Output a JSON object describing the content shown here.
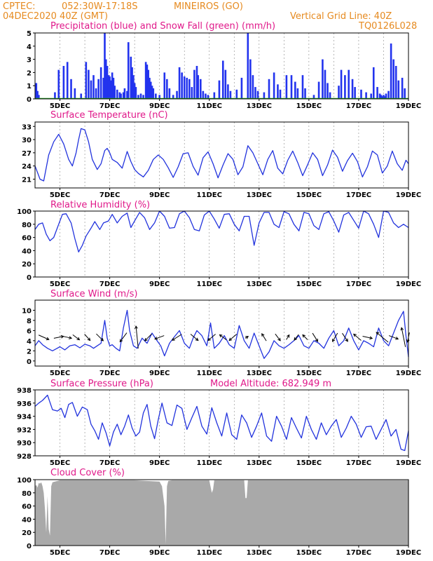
{
  "header": {
    "source": "CPTEC:",
    "coords": "052:30W-17:18S",
    "location": "MINEIROS (GO)",
    "date": "04DEC2020 40Z (GMT)",
    "grid_note": "Vertical Grid Line: 40Z",
    "code": "TQ0126L028"
  },
  "colors": {
    "header": "#e68a1f",
    "title": "#e0198a",
    "line": "#2233dd",
    "precip": "#2233ee",
    "snow": "#22aa22",
    "cloud": "#a9a9a9"
  },
  "x_axis": {
    "start_day": 4,
    "end_day": 19,
    "tick_labels": [
      "5DEC",
      "7DEC",
      "9DEC",
      "11DEC",
      "13DEC",
      "15DEC",
      "17DEC",
      "19DEC"
    ],
    "tick_days": [
      5,
      7,
      9,
      11,
      13,
      15,
      17,
      19
    ]
  },
  "chart_data": [
    {
      "type": "bar",
      "title": "Precipitation (blue) and Snow Fall (green) (mm/h)",
      "ylim": [
        0,
        5
      ],
      "yticks": [
        "0",
        "1",
        "2",
        "3",
        "4",
        "5"
      ],
      "grid": true,
      "day": [
        4.05,
        4.1,
        4.15,
        4.8,
        4.95,
        5.15,
        5.3,
        5.45,
        5.6,
        5.85,
        6.05,
        6.15,
        6.25,
        6.35,
        6.45,
        6.55,
        6.65,
        6.75,
        6.8,
        6.85,
        6.9,
        6.95,
        7.0,
        7.05,
        7.1,
        7.15,
        7.2,
        7.3,
        7.4,
        7.45,
        7.55,
        7.6,
        7.7,
        7.75,
        7.85,
        7.9,
        7.95,
        8.0,
        8.05,
        8.15,
        8.25,
        8.35,
        8.45,
        8.5,
        8.55,
        8.6,
        8.65,
        8.7,
        8.75,
        8.85,
        9.0,
        9.2,
        9.3,
        9.4,
        9.55,
        9.7,
        9.8,
        9.9,
        10.0,
        10.1,
        10.2,
        10.3,
        10.4,
        10.5,
        10.55,
        10.65,
        10.75,
        10.85,
        10.95,
        11.2,
        11.4,
        11.55,
        11.65,
        11.75,
        11.85,
        12.1,
        12.3,
        12.55,
        12.65,
        12.75,
        12.85,
        12.95,
        13.2,
        13.4,
        13.6,
        13.75,
        13.85,
        14.1,
        14.3,
        14.45,
        14.55,
        14.75,
        14.85,
        15.2,
        15.4,
        15.55,
        15.65,
        15.75,
        15.85,
        16.2,
        16.3,
        16.45,
        16.6,
        16.75,
        16.85,
        17.1,
        17.3,
        17.5,
        17.6,
        17.75,
        17.85,
        17.9,
        17.95,
        18.0,
        18.05,
        18.1,
        18.2,
        18.3,
        18.4,
        18.5,
        18.6,
        18.75,
        18.85
      ],
      "values": [
        1.2,
        0.6,
        0.3,
        0.5,
        2.2,
        2.5,
        2.8,
        1.5,
        0.8,
        0.4,
        2.8,
        2.2,
        1.4,
        1.8,
        0.8,
        1.5,
        2.4,
        1.6,
        5.0,
        3.0,
        2.5,
        1.8,
        1.7,
        1.4,
        2.0,
        1.6,
        1.0,
        0.7,
        0.5,
        0.4,
        0.5,
        0.8,
        0.6,
        4.3,
        3.2,
        2.4,
        1.8,
        1.2,
        0.9,
        0.3,
        0.4,
        0.3,
        2.8,
        2.6,
        2.2,
        1.6,
        1.3,
        1.0,
        0.8,
        0.4,
        0.3,
        2.0,
        1.5,
        0.8,
        0.3,
        0.6,
        2.4,
        2.0,
        1.7,
        1.6,
        1.5,
        0.9,
        2.2,
        2.5,
        1.8,
        1.5,
        0.6,
        0.4,
        0.3,
        0.5,
        1.4,
        2.9,
        2.2,
        1.1,
        0.6,
        0.7,
        1.6,
        5.0,
        3.0,
        1.8,
        0.9,
        0.6,
        0.5,
        1.5,
        2.0,
        1.1,
        0.7,
        1.8,
        1.8,
        1.3,
        0.8,
        1.8,
        0.8,
        0.3,
        1.3,
        3.0,
        2.2,
        1.2,
        0.5,
        1.0,
        2.2,
        1.8,
        2.2,
        1.5,
        0.9,
        0.7,
        0.5,
        0.4,
        2.4,
        0.9,
        0.4,
        0.3,
        0.2,
        0.3,
        0.2,
        0.4,
        0.6,
        4.2,
        3.0,
        2.5,
        1.4,
        1.6,
        0.8
      ]
    },
    {
      "type": "line",
      "title": "Surface Temperature (nC)",
      "ylim": [
        19,
        34
      ],
      "yticks": [
        "21",
        "24",
        "27",
        "30",
        "33"
      ],
      "ytick_values": [
        21,
        24,
        27,
        30,
        33
      ],
      "grid": true,
      "day": [
        4.0,
        4.1,
        4.2,
        4.35,
        4.55,
        4.75,
        4.95,
        5.15,
        5.35,
        5.5,
        5.65,
        5.75,
        5.85,
        6.0,
        6.15,
        6.3,
        6.5,
        6.65,
        6.8,
        6.9,
        7.0,
        7.1,
        7.3,
        7.5,
        7.7,
        7.85,
        8.0,
        8.15,
        8.35,
        8.55,
        8.75,
        8.95,
        9.15,
        9.35,
        9.55,
        9.75,
        9.95,
        10.15,
        10.35,
        10.55,
        10.75,
        10.95,
        11.15,
        11.35,
        11.55,
        11.75,
        11.95,
        12.15,
        12.35,
        12.55,
        12.75,
        12.95,
        13.15,
        13.35,
        13.55,
        13.75,
        13.95,
        14.15,
        14.35,
        14.55,
        14.75,
        14.95,
        15.15,
        15.35,
        15.55,
        15.75,
        15.95,
        16.15,
        16.35,
        16.55,
        16.75,
        16.95,
        17.15,
        17.35,
        17.55,
        17.75,
        17.95,
        18.15,
        18.35,
        18.55,
        18.75,
        18.9,
        19.0
      ],
      "values": [
        24.0,
        22.5,
        21.0,
        20.6,
        26.5,
        29.5,
        31.2,
        29.0,
        25.5,
        24.0,
        27.0,
        30.0,
        32.5,
        32.2,
        29.5,
        25.5,
        23.2,
        24.5,
        27.5,
        28.0,
        27.0,
        25.5,
        24.8,
        23.5,
        27.3,
        25.0,
        23.2,
        22.3,
        21.5,
        23.0,
        25.5,
        26.5,
        25.5,
        23.6,
        21.4,
        23.8,
        26.8,
        27.0,
        23.9,
        21.9,
        25.9,
        27.2,
        24.5,
        21.3,
        24.2,
        26.8,
        25.5,
        22.0,
        23.8,
        28.6,
        27.0,
        24.5,
        22.0,
        25.5,
        27.5,
        23.5,
        22.2,
        25.3,
        27.4,
        24.8,
        21.8,
        24.3,
        27.0,
        25.5,
        21.8,
        24.2,
        27.6,
        26.0,
        22.8,
        25.2,
        26.9,
        25.0,
        21.5,
        23.8,
        27.4,
        26.5,
        22.4,
        24.0,
        27.4,
        24.5,
        23.0,
        25.3,
        24.5
      ]
    },
    {
      "type": "line",
      "title": "Relative Humidity (%)",
      "ylim": [
        0,
        100
      ],
      "yticks": [
        "0",
        "20",
        "40",
        "60",
        "80",
        "100"
      ],
      "ytick_values": [
        0,
        20,
        40,
        60,
        80,
        100
      ],
      "grid": true,
      "day": [
        4.0,
        4.15,
        4.3,
        4.45,
        4.6,
        4.75,
        4.9,
        5.1,
        5.25,
        5.45,
        5.6,
        5.75,
        5.9,
        6.05,
        6.25,
        6.4,
        6.6,
        6.75,
        6.95,
        7.1,
        7.3,
        7.5,
        7.7,
        7.85,
        8.0,
        8.2,
        8.4,
        8.6,
        8.8,
        9.0,
        9.2,
        9.4,
        9.6,
        9.8,
        10.0,
        10.2,
        10.4,
        10.6,
        10.8,
        11.0,
        11.2,
        11.4,
        11.6,
        11.8,
        12.0,
        12.2,
        12.4,
        12.6,
        12.8,
        13.0,
        13.2,
        13.4,
        13.6,
        13.8,
        14.0,
        14.2,
        14.4,
        14.6,
        14.8,
        15.0,
        15.2,
        15.4,
        15.6,
        15.8,
        16.0,
        16.2,
        16.4,
        16.6,
        16.8,
        17.0,
        17.2,
        17.4,
        17.6,
        17.8,
        18.0,
        18.2,
        18.4,
        18.6,
        18.8,
        19.0
      ],
      "values": [
        72,
        80,
        82,
        65,
        55,
        60,
        75,
        95,
        96,
        82,
        58,
        38,
        48,
        62,
        74,
        84,
        72,
        82,
        85,
        95,
        82,
        92,
        97,
        75,
        85,
        98,
        90,
        72,
        82,
        100,
        92,
        74,
        75,
        96,
        100,
        90,
        72,
        70,
        94,
        100,
        88,
        74,
        95,
        96,
        80,
        70,
        92,
        92,
        48,
        82,
        98,
        98,
        80,
        75,
        99,
        96,
        80,
        70,
        98,
        96,
        78,
        72,
        96,
        99,
        85,
        68,
        94,
        98,
        86,
        74,
        100,
        96,
        80,
        60,
        100,
        98,
        82,
        75,
        80,
        75
      ]
    },
    {
      "type": "line",
      "title": "Surface Wind (m/s)",
      "ylim": [
        -1,
        12
      ],
      "yticks": [
        "0",
        "2",
        "4",
        "6",
        "8",
        "10"
      ],
      "ytick_values": [
        0,
        2,
        4,
        6,
        8,
        10
      ],
      "grid": true,
      "day": [
        4.0,
        4.15,
        4.3,
        4.5,
        4.7,
        4.85,
        5.0,
        5.2,
        5.4,
        5.6,
        5.8,
        6.0,
        6.2,
        6.35,
        6.5,
        6.65,
        6.8,
        6.9,
        7.0,
        7.1,
        7.25,
        7.4,
        7.55,
        7.7,
        7.8,
        7.95,
        8.1,
        8.3,
        8.5,
        8.7,
        8.9,
        9.05,
        9.2,
        9.4,
        9.6,
        9.8,
        10.0,
        10.2,
        10.35,
        10.5,
        10.7,
        10.9,
        11.05,
        11.2,
        11.4,
        11.6,
        11.8,
        12.0,
        12.2,
        12.4,
        12.6,
        12.8,
        13.0,
        13.2,
        13.4,
        13.6,
        13.8,
        14.0,
        14.2,
        14.4,
        14.6,
        14.8,
        15.0,
        15.2,
        15.4,
        15.6,
        15.8,
        16.0,
        16.2,
        16.4,
        16.6,
        16.8,
        17.0,
        17.2,
        17.4,
        17.6,
        17.8,
        18.0,
        18.2,
        18.4,
        18.6,
        18.8,
        18.9,
        19.0
      ],
      "values": [
        3.0,
        4.0,
        3.2,
        2.5,
        2.0,
        2.4,
        2.8,
        2.2,
        3.0,
        3.2,
        2.6,
        3.3,
        3.0,
        2.5,
        3.0,
        3.5,
        8.0,
        4.5,
        3.0,
        3.2,
        2.5,
        2.0,
        6.5,
        10.0,
        6.0,
        3.0,
        2.5,
        4.5,
        3.5,
        5.5,
        4.0,
        3.0,
        1.0,
        3.5,
        4.8,
        6.0,
        3.5,
        2.5,
        4.5,
        6.0,
        5.0,
        3.0,
        7.5,
        2.5,
        3.5,
        5.0,
        3.2,
        2.5,
        7.0,
        4.0,
        2.5,
        5.5,
        3.0,
        0.5,
        1.8,
        4.0,
        3.0,
        2.5,
        3.2,
        4.0,
        5.0,
        3.0,
        2.5,
        4.0,
        3.5,
        2.5,
        4.5,
        6.0,
        3.0,
        4.0,
        6.5,
        4.0,
        2.2,
        4.0,
        3.5,
        2.8,
        6.5,
        4.0,
        3.0,
        5.5,
        8.0,
        9.8,
        5.0,
        0.8
      ]
    },
    {
      "type": "line",
      "title": "Surface Pressure (hPa)",
      "subtitle": "Model Altitude: 682.949 m",
      "ylim": [
        928,
        938
      ],
      "yticks": [
        "928",
        "930",
        "932",
        "934",
        "936",
        "938"
      ],
      "ytick_values": [
        928,
        930,
        932,
        934,
        936,
        938
      ],
      "grid": true,
      "day": [
        4.0,
        4.15,
        4.3,
        4.5,
        4.7,
        4.9,
        5.05,
        5.2,
        5.35,
        5.5,
        5.7,
        5.9,
        6.1,
        6.25,
        6.4,
        6.55,
        6.7,
        6.85,
        7.0,
        7.15,
        7.3,
        7.45,
        7.6,
        7.75,
        7.9,
        8.05,
        8.2,
        8.35,
        8.5,
        8.65,
        8.8,
        8.95,
        9.1,
        9.3,
        9.5,
        9.7,
        9.9,
        10.1,
        10.3,
        10.5,
        10.7,
        10.9,
        11.1,
        11.3,
        11.5,
        11.7,
        11.9,
        12.1,
        12.3,
        12.5,
        12.7,
        12.9,
        13.1,
        13.3,
        13.5,
        13.7,
        13.9,
        14.1,
        14.3,
        14.5,
        14.7,
        14.9,
        15.1,
        15.3,
        15.5,
        15.7,
        15.9,
        16.1,
        16.3,
        16.5,
        16.7,
        16.9,
        17.1,
        17.3,
        17.5,
        17.7,
        17.9,
        18.1,
        18.3,
        18.5,
        18.7,
        18.85,
        19.0
      ],
      "values": [
        935.5,
        936.0,
        936.4,
        937.2,
        935.0,
        934.8,
        935.2,
        933.8,
        935.8,
        936.1,
        934.0,
        935.4,
        935.0,
        932.8,
        931.8,
        930.5,
        933.0,
        931.5,
        929.5,
        931.6,
        932.8,
        931.2,
        932.5,
        934.2,
        932.2,
        931.0,
        931.6,
        934.5,
        935.8,
        932.5,
        930.6,
        933.5,
        936.0,
        933.0,
        932.6,
        935.7,
        935.2,
        932.0,
        933.8,
        935.5,
        932.5,
        931.3,
        935.3,
        933.0,
        931.0,
        934.5,
        931.2,
        930.5,
        934.2,
        933.0,
        930.8,
        932.5,
        934.5,
        931.0,
        930.2,
        934.0,
        932.5,
        930.5,
        933.8,
        932.2,
        930.7,
        934.0,
        932.0,
        930.5,
        933.0,
        931.2,
        932.5,
        933.5,
        930.8,
        932.2,
        934.0,
        932.8,
        930.8,
        932.4,
        932.5,
        930.5,
        932.0,
        933.5,
        931.0,
        932.0,
        929.0,
        928.8,
        931.8
      ]
    },
    {
      "type": "area",
      "title": "Cloud Cover (%)",
      "ylim": [
        0,
        100
      ],
      "yticks": [
        "0",
        "20",
        "40",
        "60",
        "80",
        "100"
      ],
      "ytick_values": [
        0,
        20,
        40,
        60,
        80,
        100
      ],
      "grid": false,
      "day": [
        4.0,
        4.05,
        4.1,
        4.15,
        4.2,
        4.25,
        4.3,
        4.35,
        4.4,
        4.45,
        4.5,
        4.55,
        4.6,
        4.65,
        4.7,
        4.8,
        4.9,
        5.0,
        5.2,
        5.5,
        5.8,
        6.0,
        6.5,
        7.0,
        7.5,
        8.0,
        8.5,
        9.0,
        9.1,
        9.2,
        9.25,
        9.3,
        9.35,
        9.5,
        10.0,
        10.5,
        11.0,
        11.1,
        11.15,
        11.2,
        11.3,
        11.5,
        12.0,
        12.4,
        12.45,
        12.5,
        12.55,
        12.6,
        13.0,
        13.5,
        14.0,
        15.0,
        16.0,
        17.0,
        18.0,
        19.0
      ],
      "values": [
        90,
        92,
        88,
        95,
        94,
        96,
        90,
        80,
        55,
        20,
        75,
        25,
        15,
        90,
        96,
        97,
        98,
        99,
        99,
        99,
        99,
        99,
        99,
        99,
        99,
        99,
        98,
        97,
        90,
        60,
        2,
        90,
        98,
        99,
        99,
        99,
        99,
        80,
        85,
        99,
        99,
        99,
        99,
        99,
        72,
        72,
        99,
        99,
        99,
        99,
        99,
        99,
        99,
        99,
        99,
        99
      ]
    },
    {
      "type": "vector",
      "title": "Wind arrows",
      "day": [
        4.35,
        4.95,
        5.3,
        5.65,
        6.1,
        6.6,
        7.55,
        8.1,
        8.55,
        9.0,
        9.7,
        10.4,
        11.1,
        11.55,
        11.95,
        12.5,
        13.2,
        13.75,
        14.15,
        14.5,
        14.85,
        15.25,
        16.05,
        16.45,
        16.95,
        17.35,
        17.95,
        18.4,
        18.8,
        19.0
      ],
      "u": [
        0.9,
        1,
        0.9,
        0.8,
        0.8,
        0.9,
        -0.6,
        -0.1,
        -0.6,
        -0.8,
        -0.8,
        0.6,
        -0.7,
        -0.8,
        -0.7,
        0.5,
        -0.5,
        0.3,
        0.3,
        -0.4,
        -0.6,
        0.5,
        -0.3,
        0.6,
        -0.7,
        0.9,
        -0.6,
        0.8,
        -0.2,
        -0.2
      ],
      "v": [
        0.4,
        -0.2,
        0.2,
        0.6,
        0.9,
        0.9,
        0.8,
        -1,
        0.6,
        0.3,
        0.5,
        0.5,
        0.6,
        -0.6,
        0.6,
        -0.3,
        -0.8,
        0.4,
        -0.5,
        0.5,
        -0.6,
        0.8,
        0.5,
        0.9,
        -0.6,
        0.2,
        -0.5,
        0.3,
        -1,
        1
      ],
      "len": [
        16,
        14,
        12,
        12,
        12,
        14,
        16,
        32,
        14,
        14,
        16,
        14,
        14,
        12,
        14,
        5,
        12,
        12,
        8,
        10,
        10,
        14,
        14,
        14,
        14,
        14,
        22,
        14,
        28,
        14
      ]
    }
  ]
}
